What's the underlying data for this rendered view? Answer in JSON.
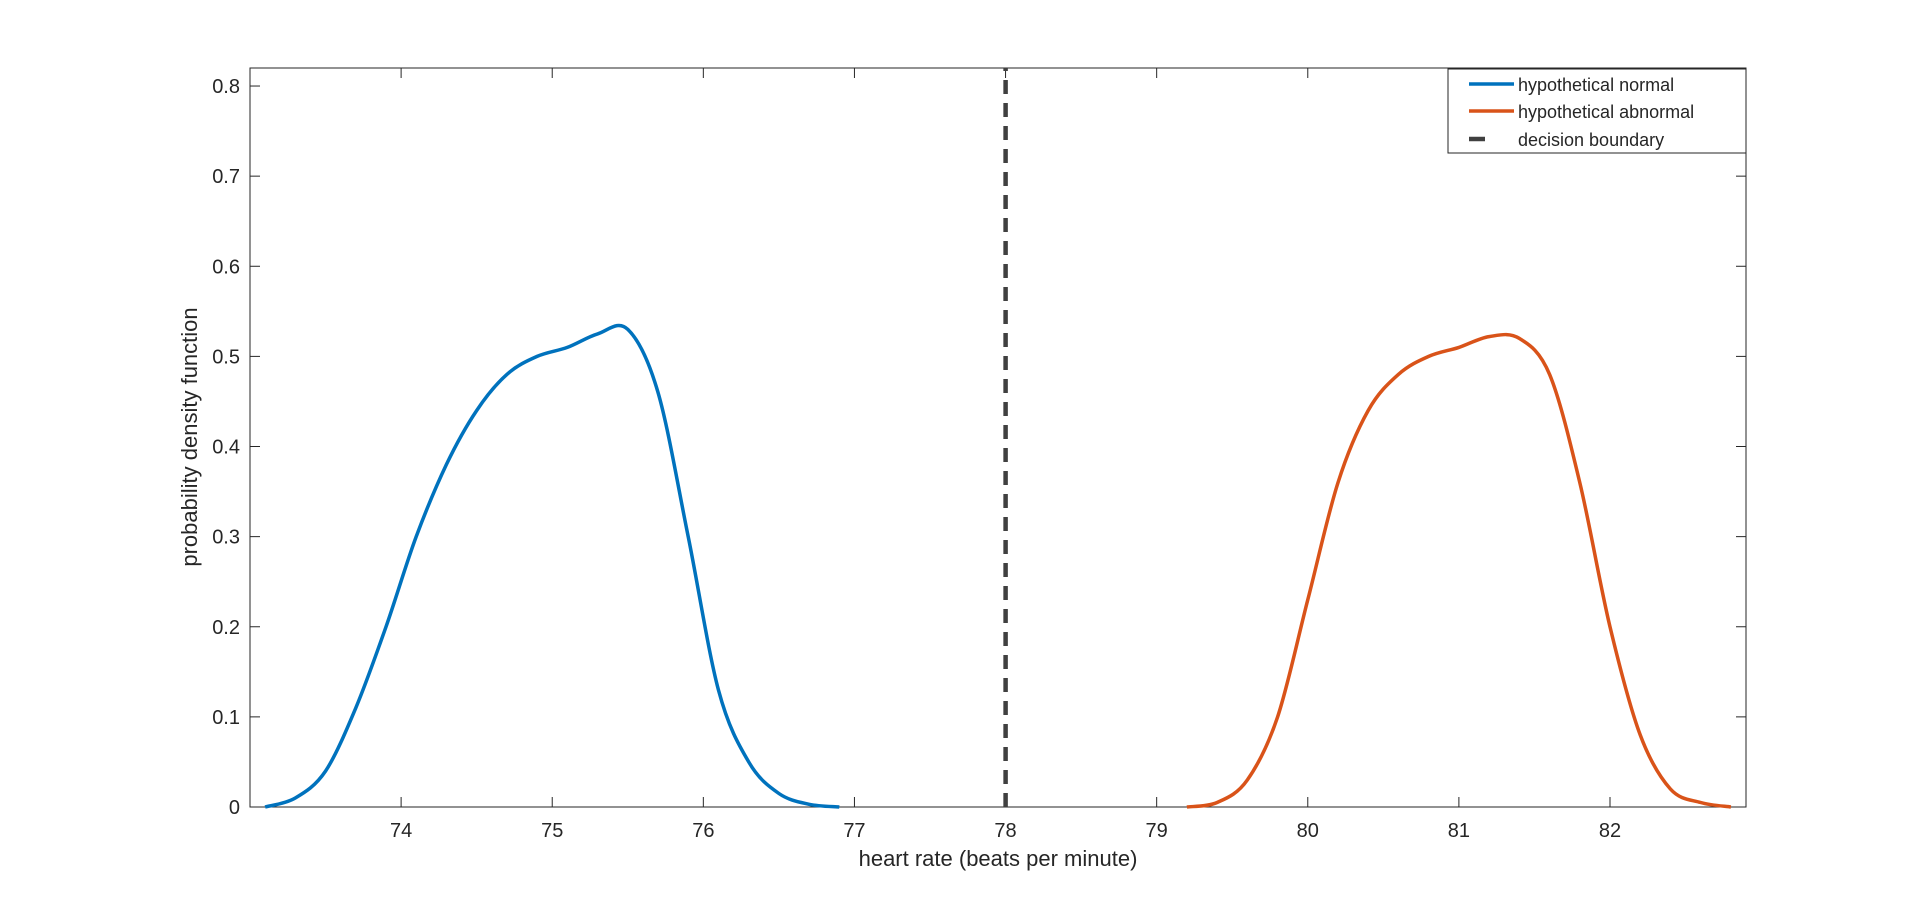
{
  "chart_data": {
    "type": "line",
    "title": "",
    "xlabel": "heart rate (beats per minute)",
    "ylabel": "probability density function",
    "xlim": [
      73,
      82.9
    ],
    "ylim": [
      0,
      0.82
    ],
    "xticks": [
      74,
      75,
      76,
      77,
      78,
      79,
      80,
      81,
      82
    ],
    "yticks": [
      0,
      0.1,
      0.2,
      0.3,
      0.4,
      0.5,
      0.6,
      0.7,
      0.8
    ],
    "xtick_labels": [
      "74",
      "75",
      "76",
      "77",
      "78",
      "79",
      "80",
      "81",
      "82"
    ],
    "ytick_labels": [
      "0",
      "0.1",
      "0.2",
      "0.3",
      "0.4",
      "0.5",
      "0.6",
      "0.7",
      "0.8"
    ],
    "grid": false,
    "legend_position": "top-right",
    "series": [
      {
        "name": "hypothetical normal",
        "color": "#0072BD",
        "style": "solid",
        "x": [
          73.1,
          73.3,
          73.5,
          73.7,
          73.9,
          74.1,
          74.3,
          74.5,
          74.7,
          74.9,
          75.1,
          75.3,
          75.5,
          75.7,
          75.9,
          76.1,
          76.3,
          76.5,
          76.7,
          76.9
        ],
        "y": [
          0.0,
          0.01,
          0.04,
          0.11,
          0.2,
          0.3,
          0.38,
          0.44,
          0.48,
          0.5,
          0.51,
          0.525,
          0.53,
          0.46,
          0.3,
          0.13,
          0.05,
          0.015,
          0.003,
          0.0
        ]
      },
      {
        "name": "hypothetical abnormal",
        "color": "#D95319",
        "style": "solid",
        "x": [
          79.2,
          79.4,
          79.6,
          79.8,
          80.0,
          80.2,
          80.4,
          80.6,
          80.8,
          81.0,
          81.2,
          81.4,
          81.6,
          81.8,
          82.0,
          82.2,
          82.4,
          82.6,
          82.8
        ],
        "y": [
          0.0,
          0.005,
          0.03,
          0.1,
          0.23,
          0.36,
          0.44,
          0.48,
          0.5,
          0.51,
          0.522,
          0.52,
          0.48,
          0.36,
          0.2,
          0.08,
          0.02,
          0.005,
          0.0
        ]
      },
      {
        "name": "decision boundary",
        "color": "#404040",
        "style": "dashed",
        "x": [
          78,
          78
        ],
        "y": [
          0,
          0.82
        ]
      }
    ]
  }
}
